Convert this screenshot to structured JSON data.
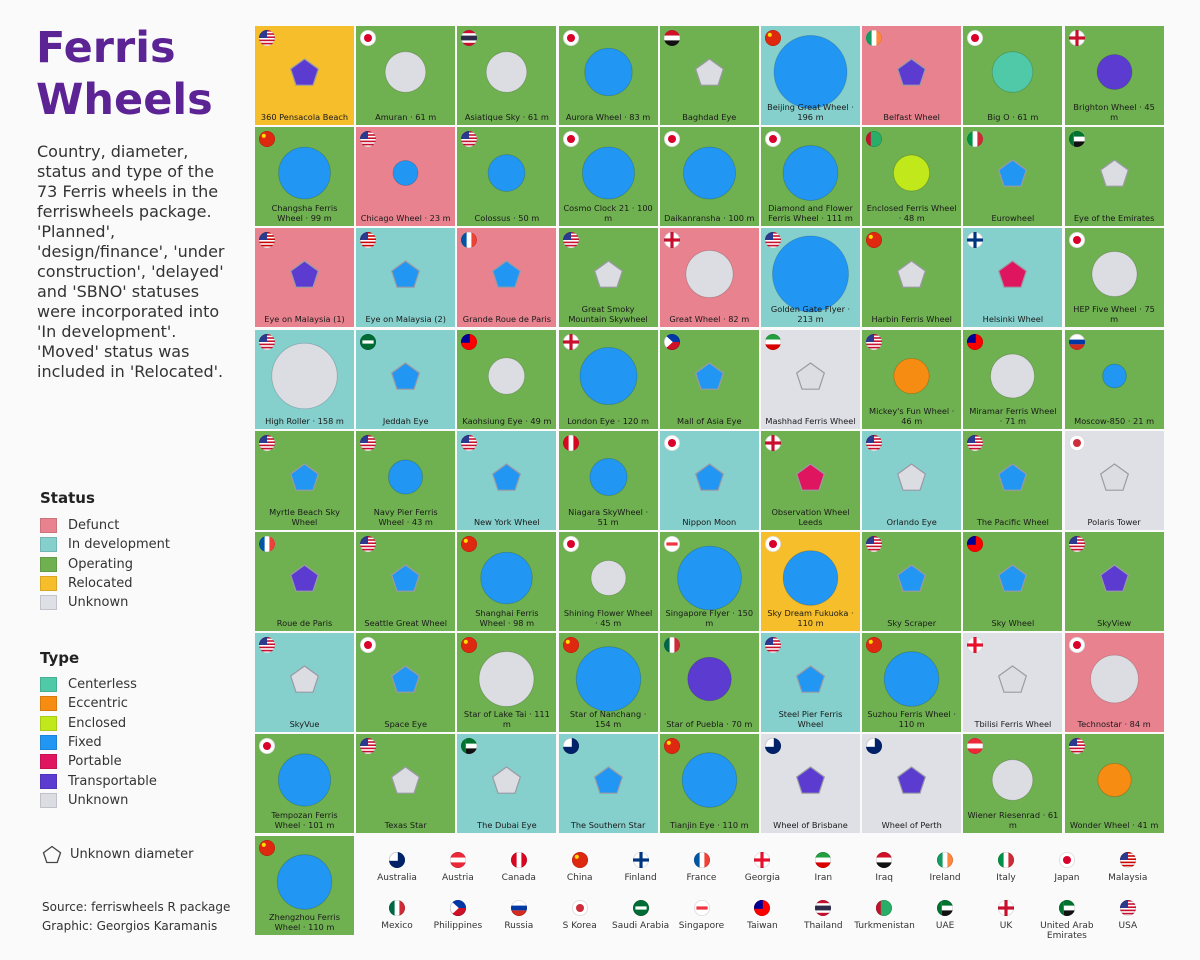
{
  "title": "Ferris Wheels",
  "subtitle": "Country, diameter, status and type of the 73 Ferris wheels in the ferriswheels package. 'Planned', 'design/finance', 'under construction', 'delayed' and 'SBNO' statuses were incorporated into 'In development'. 'Moved' status was included in 'Relocated'.",
  "status_legend": {
    "title": "Status",
    "items": [
      {
        "label": "Defunct",
        "color": "#e8828f"
      },
      {
        "label": "In development",
        "color": "#85cfcc"
      },
      {
        "label": "Operating",
        "color": "#6fb150"
      },
      {
        "label": "Relocated",
        "color": "#f6be2b"
      },
      {
        "label": "Unknown",
        "color": "#dfdfe6"
      }
    ]
  },
  "type_legend": {
    "title": "Type",
    "items": [
      {
        "label": "Centerless",
        "color": "#4fc9a7"
      },
      {
        "label": "Eccentric",
        "color": "#f68c12"
      },
      {
        "label": "Enclosed",
        "color": "#c0e81b"
      },
      {
        "label": "Fixed",
        "color": "#2196f3"
      },
      {
        "label": "Portable",
        "color": "#e0155f"
      },
      {
        "label": "Transportable",
        "color": "#5c3bd1"
      },
      {
        "label": "Unknown",
        "color": "#dcdce3"
      }
    ]
  },
  "unknown_note": "Unknown diameter",
  "source": {
    "line1": "Source: ferriswheels R package",
    "line2": "Graphic: Georgios Karamanis"
  },
  "chart_data": {
    "type": "tile grid",
    "unit": "m",
    "wheels": [
      {
        "label": "360 Pensacola Beach",
        "country": "USA",
        "status": "Relocated",
        "type": "Transportable",
        "diameter": null
      },
      {
        "label": "Amuran · 61 m",
        "country": "Japan",
        "status": "Operating",
        "type": "Unknown",
        "diameter": 61
      },
      {
        "label": "Asiatique Sky · 61 m",
        "country": "Thailand",
        "status": "Operating",
        "type": "Unknown",
        "diameter": 61
      },
      {
        "label": "Aurora Wheel · 83 m",
        "country": "Japan",
        "status": "Operating",
        "type": "Fixed",
        "diameter": 83
      },
      {
        "label": "Baghdad Eye",
        "country": "Iraq",
        "status": "Operating",
        "type": "Unknown",
        "diameter": null
      },
      {
        "label": "Beijing Great Wheel · 196 m",
        "country": "China",
        "status": "In development",
        "type": "Fixed",
        "diameter": 196
      },
      {
        "label": "Belfast Wheel",
        "country": "Ireland",
        "status": "Defunct",
        "type": "Transportable",
        "diameter": null
      },
      {
        "label": "Big O · 61 m",
        "country": "Japan",
        "status": "Operating",
        "type": "Centerless",
        "diameter": 61
      },
      {
        "label": "Brighton Wheel · 45 m",
        "country": "UK",
        "status": "Operating",
        "type": "Transportable",
        "diameter": 45
      },
      {
        "label": "Changsha Ferris Wheel · 99 m",
        "country": "China",
        "status": "Operating",
        "type": "Fixed",
        "diameter": 99
      },
      {
        "label": "Chicago Wheel · 23 m",
        "country": "USA",
        "status": "Defunct",
        "type": "Fixed",
        "diameter": 23
      },
      {
        "label": "Colossus · 50 m",
        "country": "USA",
        "status": "Operating",
        "type": "Fixed",
        "diameter": 50
      },
      {
        "label": "Cosmo Clock 21 · 100 m",
        "country": "Japan",
        "status": "Operating",
        "type": "Fixed",
        "diameter": 100
      },
      {
        "label": "Daikanransha · 100 m",
        "country": "Japan",
        "status": "Operating",
        "type": "Fixed",
        "diameter": 100
      },
      {
        "label": "Diamond and Flower Ferris Wheel · 111 m",
        "country": "Japan",
        "status": "Operating",
        "type": "Fixed",
        "diameter": 111
      },
      {
        "label": "Enclosed Ferris Wheel · 48 m",
        "country": "Turkmenistan",
        "status": "Operating",
        "type": "Enclosed",
        "diameter": 48
      },
      {
        "label": "Eurowheel",
        "country": "Italy",
        "status": "Operating",
        "type": "Fixed",
        "diameter": null
      },
      {
        "label": "Eye of the Emirates",
        "country": "UAE",
        "status": "Operating",
        "type": "Unknown",
        "diameter": null
      },
      {
        "label": "Eye on Malaysia (1)",
        "country": "Malaysia",
        "status": "Defunct",
        "type": "Transportable",
        "diameter": null
      },
      {
        "label": "Eye on Malaysia (2)",
        "country": "Malaysia",
        "status": "In development",
        "type": "Fixed",
        "diameter": null
      },
      {
        "label": "Grande Roue de Paris",
        "country": "France",
        "status": "Defunct",
        "type": "Fixed",
        "diameter": null
      },
      {
        "label": "Great Smoky Mountain Skywheel",
        "country": "USA",
        "status": "Operating",
        "type": "Unknown",
        "diameter": null
      },
      {
        "label": "Great Wheel · 82 m",
        "country": "UK",
        "status": "Defunct",
        "type": "Unknown",
        "diameter": 82
      },
      {
        "label": "Golden Gate Flyer · 213 m",
        "country": "USA",
        "status": "In development",
        "type": "Fixed",
        "diameter": 213
      },
      {
        "label": "Harbin Ferris Wheel",
        "country": "China",
        "status": "Operating",
        "type": "Unknown",
        "diameter": null
      },
      {
        "label": "Helsinki Wheel",
        "country": "Finland",
        "status": "In development",
        "type": "Portable",
        "diameter": null
      },
      {
        "label": "HEP Five Wheel · 75 m",
        "country": "Japan",
        "status": "Operating",
        "type": "Unknown",
        "diameter": 75
      },
      {
        "label": "High Roller · 158 m",
        "country": "USA",
        "status": "In development",
        "type": "Unknown",
        "diameter": 158
      },
      {
        "label": "Jeddah Eye",
        "country": "Saudi Arabia",
        "status": "In development",
        "type": "Fixed",
        "diameter": null
      },
      {
        "label": "Kaohsiung Eye · 49 m",
        "country": "Taiwan",
        "status": "Operating",
        "type": "Unknown",
        "diameter": 49
      },
      {
        "label": "London Eye · 120 m",
        "country": "UK",
        "status": "Operating",
        "type": "Fixed",
        "diameter": 120
      },
      {
        "label": "Mall of Asia Eye",
        "country": "Philippines",
        "status": "Operating",
        "type": "Fixed",
        "diameter": null
      },
      {
        "label": "Mashhad Ferris Wheel",
        "country": "Iran",
        "status": "Unknown",
        "type": "Unknown",
        "diameter": null
      },
      {
        "label": "Mickey's Fun Wheel · 46 m",
        "country": "USA",
        "status": "Operating",
        "type": "Eccentric",
        "diameter": 46
      },
      {
        "label": "Miramar Ferris Wheel · 71 m",
        "country": "Taiwan",
        "status": "Operating",
        "type": "Unknown",
        "diameter": 71
      },
      {
        "label": "Moscow-850 · 21 m",
        "country": "Russia",
        "status": "Operating",
        "type": "Fixed",
        "diameter": 21
      },
      {
        "label": "Myrtle Beach Sky Wheel",
        "country": "USA",
        "status": "Operating",
        "type": "Fixed",
        "diameter": null
      },
      {
        "label": "Navy Pier Ferris Wheel · 43 m",
        "country": "USA",
        "status": "Operating",
        "type": "Fixed",
        "diameter": 43
      },
      {
        "label": "New York Wheel",
        "country": "USA",
        "status": "In development",
        "type": "Fixed",
        "diameter": null
      },
      {
        "label": "Niagara SkyWheel · 51 m",
        "country": "Canada",
        "status": "Operating",
        "type": "Fixed",
        "diameter": 51
      },
      {
        "label": "Nippon Moon",
        "country": "Japan",
        "status": "In development",
        "type": "Fixed",
        "diameter": null
      },
      {
        "label": "Observation Wheel Leeds",
        "country": "UK",
        "status": "Operating",
        "type": "Portable",
        "diameter": null
      },
      {
        "label": "Orlando Eye",
        "country": "USA",
        "status": "In development",
        "type": "Unknown",
        "diameter": null
      },
      {
        "label": "The Pacific Wheel",
        "country": "USA",
        "status": "Operating",
        "type": "Fixed",
        "diameter": null
      },
      {
        "label": "Polaris Tower",
        "country": "S Korea",
        "status": "Unknown",
        "type": "Unknown",
        "diameter": null
      },
      {
        "label": "Roue de Paris",
        "country": "France",
        "status": "Operating",
        "type": "Transportable",
        "diameter": null
      },
      {
        "label": "Seattle Great Wheel",
        "country": "USA",
        "status": "Operating",
        "type": "Fixed",
        "diameter": null
      },
      {
        "label": "Shanghai Ferris Wheel · 98 m",
        "country": "China",
        "status": "Operating",
        "type": "Fixed",
        "diameter": 98
      },
      {
        "label": "Shining Flower Wheel · 45 m",
        "country": "Japan",
        "status": "Operating",
        "type": "Unknown",
        "diameter": 45
      },
      {
        "label": "Singapore Flyer · 150 m",
        "country": "Singapore",
        "status": "Operating",
        "type": "Fixed",
        "diameter": 150
      },
      {
        "label": "Sky Dream Fukuoka · 110 m",
        "country": "Japan",
        "status": "Relocated",
        "type": "Fixed",
        "diameter": 110
      },
      {
        "label": "Sky Scraper",
        "country": "USA",
        "status": "Operating",
        "type": "Fixed",
        "diameter": null
      },
      {
        "label": "Sky Wheel",
        "country": "Taiwan",
        "status": "Operating",
        "type": "Fixed",
        "diameter": null
      },
      {
        "label": "SkyView",
        "country": "USA",
        "status": "Operating",
        "type": "Transportable",
        "diameter": null
      },
      {
        "label": "SkyVue",
        "country": "USA",
        "status": "In development",
        "type": "Unknown",
        "diameter": null
      },
      {
        "label": "Space Eye",
        "country": "Japan",
        "status": "Operating",
        "type": "Fixed",
        "diameter": null
      },
      {
        "label": "Star of Lake Tai · 111 m",
        "country": "China",
        "status": "Operating",
        "type": "Unknown",
        "diameter": 111
      },
      {
        "label": "Star of Nanchang · 154 m",
        "country": "China",
        "status": "Operating",
        "type": "Fixed",
        "diameter": 154
      },
      {
        "label": "Star of Puebla · 70 m",
        "country": "Mexico",
        "status": "Operating",
        "type": "Transportable",
        "diameter": 70
      },
      {
        "label": "Steel Pier Ferris Wheel",
        "country": "USA",
        "status": "In development",
        "type": "Fixed",
        "diameter": null
      },
      {
        "label": "Suzhou Ferris Wheel · 110 m",
        "country": "China",
        "status": "Operating",
        "type": "Fixed",
        "diameter": 110
      },
      {
        "label": "Tbilisi Ferris Wheel",
        "country": "Georgia",
        "status": "Unknown",
        "type": "Unknown",
        "diameter": null
      },
      {
        "label": "Technostar · 84 m",
        "country": "Japan",
        "status": "Defunct",
        "type": "Unknown",
        "diameter": 84
      },
      {
        "label": "Tempozan Ferris Wheel · 101 m",
        "country": "Japan",
        "status": "Operating",
        "type": "Fixed",
        "diameter": 101
      },
      {
        "label": "Texas Star",
        "country": "USA",
        "status": "Operating",
        "type": "Unknown",
        "diameter": null
      },
      {
        "label": "The Dubai Eye",
        "country": "United Arab Emirates",
        "status": "In development",
        "type": "Unknown",
        "diameter": null
      },
      {
        "label": "The Southern Star",
        "country": "Australia",
        "status": "In development",
        "type": "Fixed",
        "diameter": null
      },
      {
        "label": "Tianjin Eye · 110 m",
        "country": "China",
        "status": "Operating",
        "type": "Fixed",
        "diameter": 110
      },
      {
        "label": "Wheel of Brisbane",
        "country": "Australia",
        "status": "Unknown",
        "type": "Transportable",
        "diameter": null
      },
      {
        "label": "Wheel of Perth",
        "country": "Australia",
        "status": "Unknown",
        "type": "Transportable",
        "diameter": null
      },
      {
        "label": "Wiener Riesenrad · 61 m",
        "country": "Austria",
        "status": "Operating",
        "type": "Unknown",
        "diameter": 61
      },
      {
        "label": "Wonder Wheel · 41 m",
        "country": "USA",
        "status": "Operating",
        "type": "Eccentric",
        "diameter": 41
      },
      {
        "label": "Zhengzhou Ferris Wheel · 110 m",
        "country": "China",
        "status": "Operating",
        "type": "Fixed",
        "diameter": 110
      }
    ]
  },
  "flag_legend": [
    "Australia",
    "Austria",
    "Canada",
    "China",
    "Finland",
    "France",
    "Georgia",
    "Iran",
    "Iraq",
    "Ireland",
    "Italy",
    "Japan",
    "Malaysia",
    "Mexico",
    "Philippines",
    "Russia",
    "S Korea",
    "Saudi Arabia",
    "Singapore",
    "Taiwan",
    "Thailand",
    "Turkmenistan",
    "UAE",
    "UK",
    "United Arab Emirates",
    "USA"
  ]
}
